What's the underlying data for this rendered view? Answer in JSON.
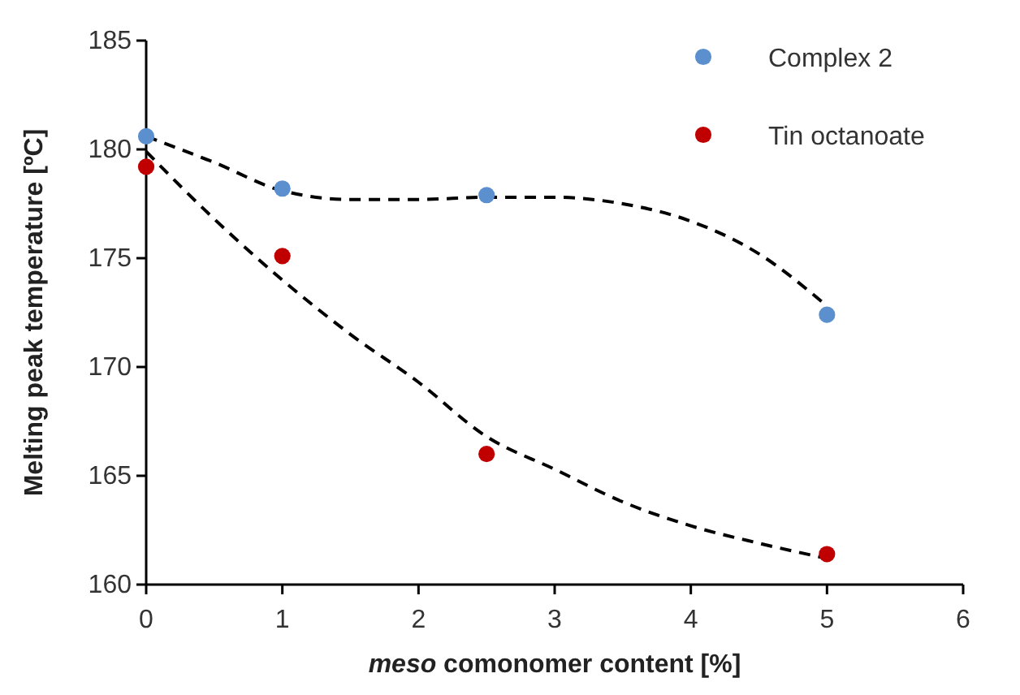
{
  "chart_data": {
    "type": "scatter",
    "xlabel": "meso comonomer content [%]",
    "ylabel": "Melting peak temperature [ºC]",
    "xlim": [
      0,
      6
    ],
    "xticks": [
      0,
      1,
      2,
      3,
      4,
      5,
      6
    ],
    "ylim": [
      160,
      185
    ],
    "yticks": [
      160,
      165,
      170,
      175,
      180,
      185
    ],
    "grid": false,
    "legend": "top right",
    "marker": "circle",
    "series": [
      {
        "name": "Complex 2",
        "color": "#5b8fce",
        "x": [
          0,
          1,
          2.5,
          5
        ],
        "values": [
          180.6,
          178.2,
          177.9,
          172.4
        ]
      },
      {
        "name": "Tin octanoate",
        "color": "#c00000",
        "x": [
          0,
          1,
          2.5,
          5
        ],
        "values": [
          179.2,
          175.1,
          166.0,
          161.4
        ]
      },
      {
        "type": "line",
        "color": "#000000",
        "line_style": "dashed",
        "marker": "none",
        "x": [
          0,
          0.5,
          1,
          1.5,
          2,
          2.5,
          3,
          3.5,
          4,
          4.5,
          5
        ],
        "values": [
          180.6,
          179.4,
          178.1,
          177.7,
          177.7,
          177.8,
          177.8,
          177.5,
          176.7,
          175.2,
          172.8
        ]
      },
      {
        "type": "line",
        "color": "#000000",
        "line_style": "dashed",
        "marker": "none",
        "x": [
          0,
          0.5,
          1,
          1.5,
          2,
          2.5,
          3,
          3.5,
          4,
          4.5,
          5
        ],
        "values": [
          179.9,
          176.8,
          174.0,
          171.5,
          169.3,
          166.8,
          165.3,
          163.8,
          162.7,
          161.9,
          161.2
        ]
      }
    ]
  }
}
